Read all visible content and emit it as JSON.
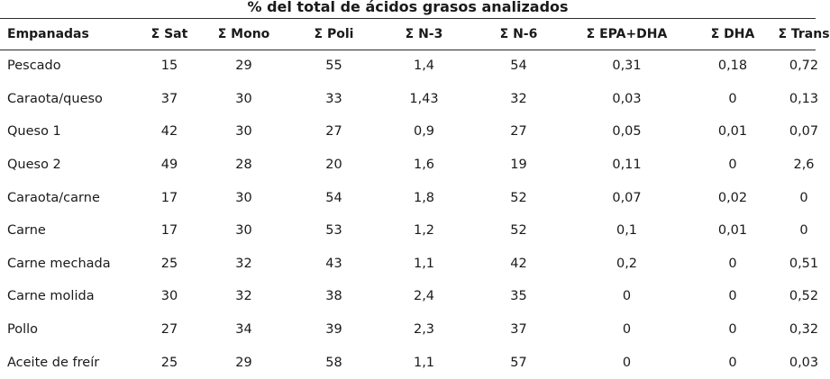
{
  "caption": "% del total de ácidos grasos analizados",
  "columns": [
    "Empanadas",
    "Σ Sat",
    "Σ Mono",
    "Σ Poli",
    "Σ N-3",
    "Σ N-6",
    "Σ EPA+DHA",
    "Σ DHA",
    "Σ Trans"
  ],
  "rows": [
    [
      "Pescado",
      "15",
      "29",
      "55",
      "1,4",
      "54",
      "0,31",
      "0,18",
      "0,72"
    ],
    [
      "Caraota/queso",
      "37",
      "30",
      "33",
      "1,43",
      "32",
      "0,03",
      "0",
      "0,13"
    ],
    [
      "Queso  1",
      "42",
      "30",
      "27",
      "0,9",
      "27",
      "0,05",
      "0,01",
      "0,07"
    ],
    [
      "Queso  2",
      "49",
      "28",
      "20",
      "1,6",
      "19",
      "0,11",
      "0",
      "2,6"
    ],
    [
      "Caraota/carne",
      "17",
      "30",
      "54",
      "1,8",
      "52",
      "0,07",
      "0,02",
      "0"
    ],
    [
      "Carne",
      "17",
      "30",
      "53",
      "1,2",
      "52",
      "0,1",
      "0,01",
      "0"
    ],
    [
      "Carne mechada",
      "25",
      "32",
      "43",
      "1,1",
      "42",
      "0,2",
      "0",
      "0,51"
    ],
    [
      "Carne  molida",
      "30",
      "32",
      "38",
      "2,4",
      "35",
      "0",
      "0",
      "0,52"
    ],
    [
      "Pollo",
      "27",
      "34",
      "39",
      "2,3",
      "37",
      "0",
      "0",
      "0,32"
    ],
    [
      "Aceite de freír",
      "25",
      "29",
      "58",
      "1,1",
      "57",
      "0",
      "0",
      "0,03"
    ]
  ]
}
